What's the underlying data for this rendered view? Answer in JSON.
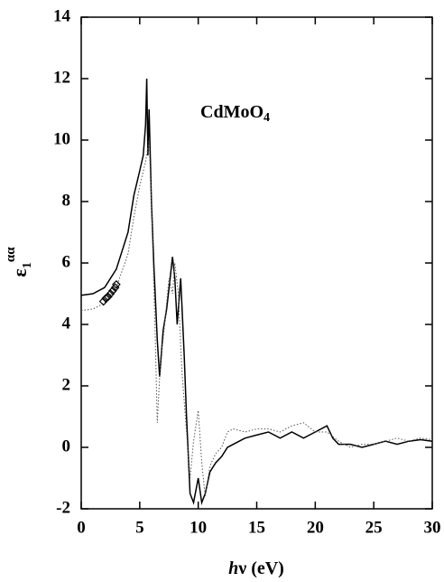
{
  "chart_data": {
    "type": "line",
    "annotation": {
      "text": "CdMoO",
      "subscript": "4"
    },
    "xlabel": {
      "italic": "h",
      "text": "ν (eV)"
    },
    "ylabel": {
      "text": "ε",
      "subscript": "1",
      "superscript": "αα"
    },
    "xlim": [
      0,
      30
    ],
    "xticks": [
      0,
      5,
      10,
      15,
      20,
      25,
      30
    ],
    "ylim": [
      -2,
      14
    ],
    "yticks": [
      -2,
      0,
      2,
      4,
      6,
      8,
      10,
      12,
      14
    ],
    "series": [
      {
        "style": "solid",
        "color": "#000000",
        "x": [
          0,
          1,
          2,
          3,
          4,
          4.5,
          5,
          5.3,
          5.5,
          5.6,
          5.7,
          5.8,
          6.0,
          6.2,
          6.5,
          6.7,
          7.0,
          7.3,
          7.6,
          7.8,
          8.0,
          8.2,
          8.5,
          8.8,
          9.0,
          9.3,
          9.6,
          10.0,
          10.3,
          10.6,
          11,
          11.5,
          12,
          12.5,
          13,
          14,
          15,
          16,
          17,
          18,
          19,
          20,
          21,
          21.5,
          22,
          23,
          24,
          25,
          26,
          27,
          28,
          29,
          30
        ],
        "values": [
          4.95,
          5.0,
          5.2,
          5.8,
          7.0,
          8.2,
          9.0,
          9.5,
          10.5,
          12.0,
          9.5,
          11.0,
          8.0,
          6.0,
          3.5,
          2.3,
          3.8,
          4.5,
          5.5,
          6.2,
          5.5,
          4.0,
          5.5,
          3.0,
          1.0,
          -1.5,
          -1.8,
          -1.0,
          -1.8,
          -1.5,
          -0.8,
          -0.5,
          -0.3,
          0,
          0.1,
          0.3,
          0.4,
          0.5,
          0.3,
          0.5,
          0.3,
          0.5,
          0.7,
          0.3,
          0.1,
          0.1,
          0.0,
          0.1,
          0.2,
          0.1,
          0.2,
          0.25,
          0.2
        ]
      },
      {
        "style": "dotted",
        "color": "#555555",
        "x": [
          0,
          1,
          2,
          3,
          4,
          4.5,
          5,
          5.5,
          5.8,
          6.0,
          6.3,
          6.5,
          6.8,
          7.0,
          7.5,
          7.8,
          8.0,
          8.3,
          8.6,
          9.0,
          9.3,
          9.6,
          10.0,
          10.3,
          10.6,
          11,
          11.5,
          12,
          12.5,
          13,
          14,
          15,
          16,
          17,
          18,
          19,
          20,
          21,
          22,
          23,
          24,
          25,
          26,
          27,
          28,
          29,
          30
        ],
        "values": [
          4.45,
          4.5,
          4.7,
          5.2,
          6.3,
          7.5,
          8.5,
          9.3,
          10.0,
          8.0,
          4.0,
          0.8,
          3.0,
          3.5,
          5.5,
          5.0,
          6.0,
          5.0,
          2.5,
          0.5,
          -1.0,
          0.2,
          1.2,
          -0.5,
          -1.6,
          -0.6,
          -0.2,
          0.0,
          0.5,
          0.6,
          0.5,
          0.6,
          0.6,
          0.5,
          0.7,
          0.8,
          0.5,
          0.5,
          0.2,
          0.0,
          0.1,
          0.1,
          0.2,
          0.3,
          0.2,
          0.3,
          0.25
        ]
      },
      {
        "style": "markers",
        "color": "#000000",
        "x": [
          1.9,
          2.1,
          2.3,
          2.5,
          2.7,
          2.9,
          3.0
        ],
        "values": [
          4.75,
          4.85,
          4.9,
          5.0,
          5.1,
          5.2,
          5.3
        ]
      }
    ]
  }
}
